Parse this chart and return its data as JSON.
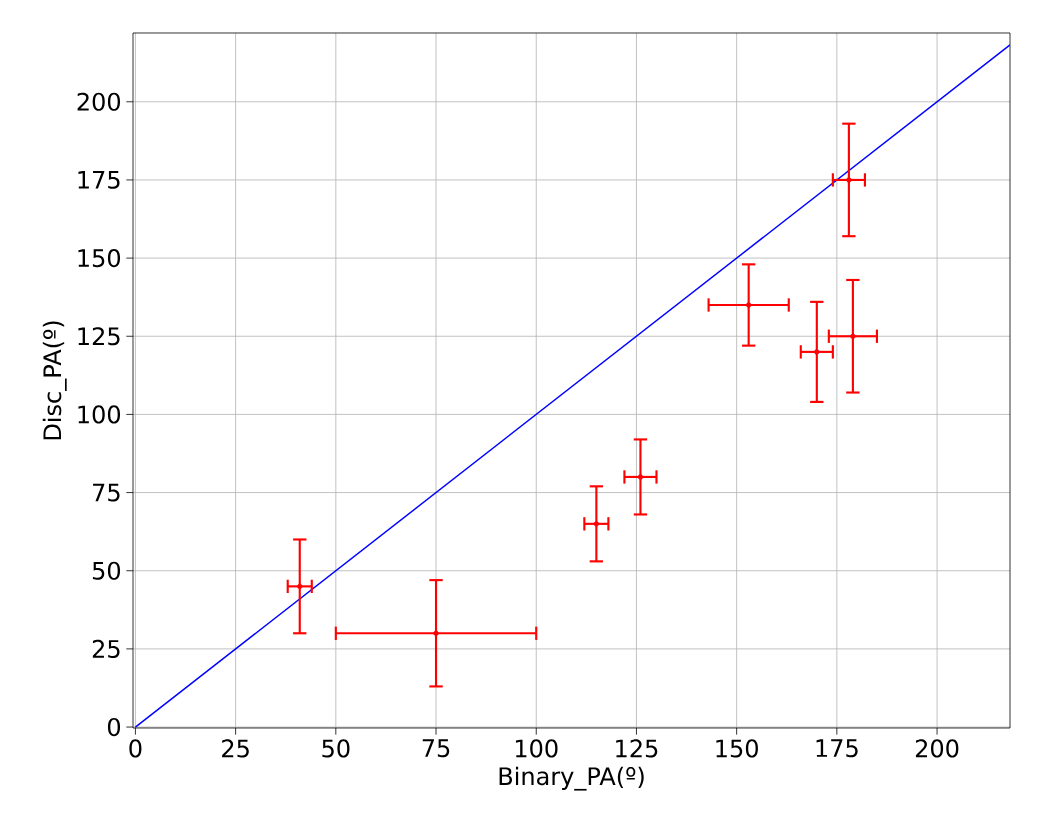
{
  "chart_data": {
    "type": "scatter",
    "xlabel": "Binary_PA(º)",
    "ylabel": "Disc_PA(º)",
    "xlim": [
      -0.6,
      218.2
    ],
    "ylim": [
      -0.3,
      222
    ],
    "xticks": [
      0,
      25,
      50,
      75,
      100,
      125,
      150,
      175,
      200
    ],
    "yticks": [
      0,
      25,
      50,
      75,
      100,
      125,
      150,
      175,
      200
    ],
    "grid": true,
    "series": [
      {
        "type": "line",
        "color": "#0000ff",
        "marker": "none",
        "x": [
          0,
          218.2
        ],
        "values": [
          0,
          218.2
        ]
      },
      {
        "color": "#ff0000",
        "marker": "circle",
        "x": [
          41,
          75,
          115,
          126,
          153,
          170,
          178,
          179
        ],
        "values": [
          45,
          30,
          65,
          80,
          135,
          120,
          175,
          125
        ],
        "errors": [
          15,
          17,
          12,
          12,
          13,
          16,
          18,
          18
        ],
        "xerrors": [
          3,
          25,
          3,
          4,
          10,
          4,
          4,
          6
        ]
      }
    ]
  }
}
